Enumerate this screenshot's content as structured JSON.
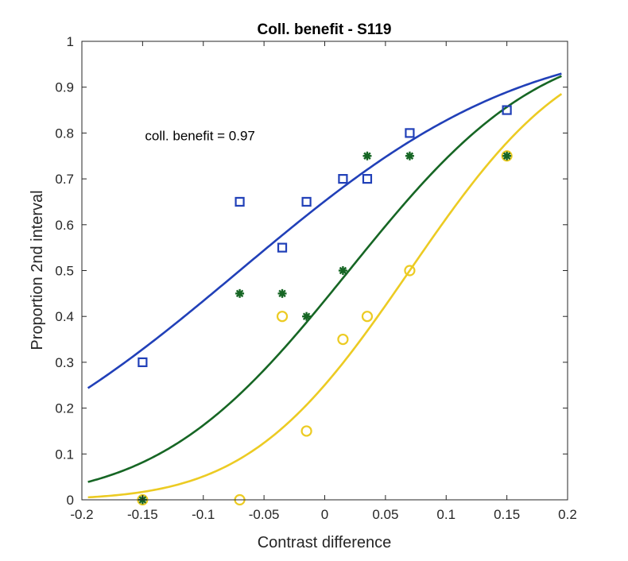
{
  "chart_data": {
    "type": "scatter",
    "title": "Coll. benefit - S119",
    "xlabel": "Contrast difference",
    "ylabel": "Proportion 2nd interval",
    "xlim": [
      -0.2,
      0.2
    ],
    "ylim": [
      0,
      1
    ],
    "x_ticks": [
      -0.2,
      -0.15,
      -0.1,
      -0.05,
      0,
      0.05,
      0.1,
      0.15,
      0.2
    ],
    "x_tick_labels": [
      "-0.2",
      "-0.15",
      "-0.1",
      "-0.05",
      "0",
      "0.05",
      "0.1",
      "0.15",
      "0.2"
    ],
    "y_ticks": [
      0,
      0.1,
      0.2,
      0.3,
      0.4,
      0.5,
      0.6,
      0.7,
      0.8,
      0.9,
      1
    ],
    "y_tick_labels": [
      "0",
      "0.1",
      "0.2",
      "0.3",
      "0.4",
      "0.5",
      "0.6",
      "0.7",
      "0.8",
      "0.9",
      "1"
    ],
    "grid": false,
    "annotation": {
      "text": "coll. benefit = 0.97",
      "x": -0.148,
      "y": 0.795
    },
    "series": [
      {
        "marker": "square",
        "color": "#2140b8",
        "x": [
          -0.15,
          -0.07,
          -0.035,
          -0.015,
          0.015,
          0.035,
          0.07,
          0.15
        ],
        "y": [
          0.3,
          0.65,
          0.55,
          0.65,
          0.7,
          0.7,
          0.8,
          0.85
        ],
        "fit_curve": {
          "xrange": [
            -0.195,
            0.195
          ],
          "mu": -0.07,
          "sigma": 0.18
        }
      },
      {
        "marker": "circle",
        "color": "#eccb23",
        "x": [
          -0.15,
          -0.07,
          -0.035,
          -0.015,
          0.015,
          0.035,
          0.07,
          0.15
        ],
        "y": [
          0.0,
          0.0,
          0.4,
          0.15,
          0.35,
          0.4,
          0.5,
          0.75
        ],
        "fit_curve": {
          "xrange": [
            -0.195,
            0.195
          ],
          "mu": 0.07,
          "sigma": 0.104
        }
      },
      {
        "marker": "asterisk",
        "color": "#166624",
        "x": [
          -0.15,
          -0.07,
          -0.035,
          -0.015,
          0.015,
          0.035,
          0.07,
          0.15
        ],
        "y": [
          0.0,
          0.45,
          0.45,
          0.4,
          0.5,
          0.75,
          0.75,
          0.75
        ],
        "fit_curve": {
          "xrange": [
            -0.195,
            0.195
          ],
          "mu": 0.02,
          "sigma": 0.122
        }
      }
    ]
  }
}
